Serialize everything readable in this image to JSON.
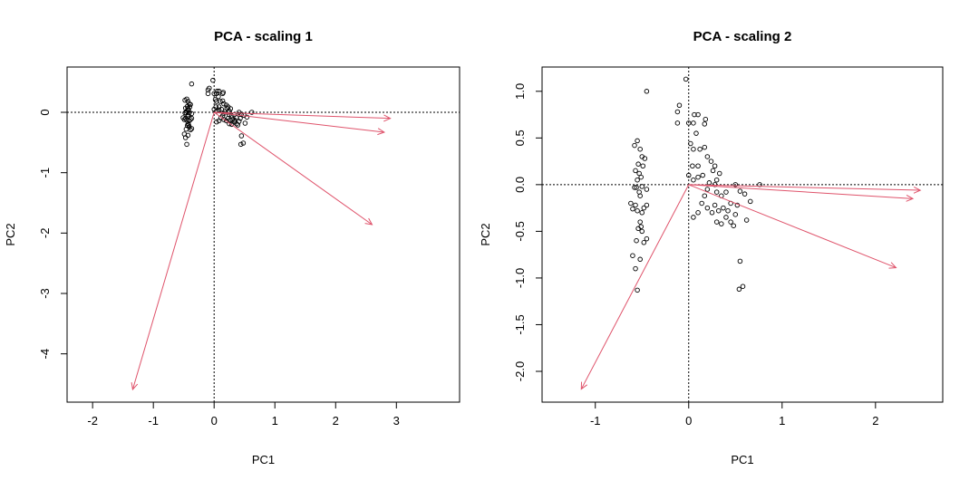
{
  "colors": {
    "arrow": "#df536b",
    "points": "#000000",
    "axes": "#000000"
  },
  "chart_data": [
    {
      "type": "scatter",
      "subtype": "biplot",
      "title": "PCA - scaling 1",
      "xlabel": "PC1",
      "ylabel": "PC2",
      "xlim": [
        -2.42,
        4.04
      ],
      "ylim": [
        -4.8,
        0.75
      ],
      "xticks": [
        -2,
        -1,
        0,
        1,
        2,
        3
      ],
      "yticks": [
        0,
        -1,
        -2,
        -3,
        -4
      ],
      "reference_lines": {
        "x": 0,
        "y": 0,
        "style": "dotted"
      },
      "arrows": [
        [
          2.9,
          -0.1
        ],
        [
          2.8,
          -0.33
        ],
        [
          2.6,
          -1.86
        ],
        [
          -1.34,
          -4.59
        ]
      ],
      "points": [
        [
          -0.37,
          0.47
        ],
        [
          -0.48,
          0.2
        ],
        [
          -0.43,
          0.18
        ],
        [
          -0.45,
          0.22
        ],
        [
          -0.41,
          0.14
        ],
        [
          -0.39,
          0.13
        ],
        [
          -0.44,
          0.1
        ],
        [
          -0.4,
          0.09
        ],
        [
          -0.47,
          0.07
        ],
        [
          -0.43,
          0.06
        ],
        [
          -0.42,
          0.04
        ],
        [
          -0.45,
          0.02
        ],
        [
          -0.41,
          -0.01
        ],
        [
          -0.46,
          -0.01
        ],
        [
          -0.37,
          -0.02
        ],
        [
          -0.43,
          -0.04
        ],
        [
          -0.43,
          -0.06
        ],
        [
          -0.51,
          -0.09
        ],
        [
          -0.47,
          -0.1
        ],
        [
          -0.37,
          -0.1
        ],
        [
          -0.41,
          -0.14
        ],
        [
          -0.45,
          -0.13
        ],
        [
          -0.49,
          -0.12
        ],
        [
          -0.39,
          -0.12
        ],
        [
          -0.43,
          -0.19
        ],
        [
          -0.44,
          -0.22
        ],
        [
          -0.41,
          -0.24
        ],
        [
          -0.46,
          -0.28
        ],
        [
          -0.39,
          -0.29
        ],
        [
          -0.37,
          -0.27
        ],
        [
          -0.49,
          -0.36
        ],
        [
          -0.47,
          -0.42
        ],
        [
          -0.43,
          -0.38
        ],
        [
          -0.45,
          -0.53
        ],
        [
          -0.42,
          -0.21
        ],
        [
          -0.48,
          -0.01
        ],
        [
          -0.02,
          0.53
        ],
        [
          -0.08,
          0.4
        ],
        [
          -0.1,
          0.37
        ],
        [
          -0.1,
          0.31
        ],
        [
          0,
          0.31
        ],
        [
          0.04,
          0.31
        ],
        [
          0.08,
          0.35
        ],
        [
          0.05,
          0.35
        ],
        [
          0.15,
          0.33
        ],
        [
          0.14,
          0.31
        ],
        [
          0.14,
          0.19
        ],
        [
          0.07,
          0.26
        ],
        [
          0.02,
          0.21
        ],
        [
          0.04,
          0.18
        ],
        [
          0.1,
          0.18
        ],
        [
          0.16,
          0.14
        ],
        [
          0.2,
          0.12
        ],
        [
          0.23,
          0.09
        ],
        [
          0.21,
          0.07
        ],
        [
          0.27,
          0.06
        ],
        [
          0.08,
          0.09
        ],
        [
          0.03,
          0.09
        ],
        [
          0.08,
          0.04
        ],
        [
          0.12,
          0.05
        ],
        [
          0.25,
          0.02
        ],
        [
          0.18,
          0.01
        ],
        [
          0.23,
          0
        ],
        [
          0.41,
          0
        ],
        [
          0.62,
          0
        ],
        [
          0,
          0.05
        ],
        [
          0.04,
          0.02
        ],
        [
          0.16,
          -0.02
        ],
        [
          0.25,
          -0.04
        ],
        [
          0.33,
          -0.04
        ],
        [
          0.45,
          -0.03
        ],
        [
          0.29,
          -0.06
        ],
        [
          0.14,
          -0.06
        ],
        [
          0.11,
          -0.09
        ],
        [
          0.16,
          -0.12
        ],
        [
          0.23,
          -0.1
        ],
        [
          0.26,
          -0.13
        ],
        [
          0.3,
          -0.12
        ],
        [
          0.37,
          -0.09
        ],
        [
          0.43,
          -0.1
        ],
        [
          0.54,
          -0.08
        ],
        [
          0.33,
          -0.16
        ],
        [
          0.25,
          -0.19
        ],
        [
          0.29,
          -0.2
        ],
        [
          0.37,
          -0.19
        ],
        [
          0.41,
          -0.15
        ],
        [
          0.04,
          -0.16
        ],
        [
          0.2,
          -0.14
        ],
        [
          0.51,
          -0.18
        ],
        [
          0.39,
          -0.21
        ],
        [
          0.45,
          -0.39
        ],
        [
          0.44,
          -0.53
        ],
        [
          0.48,
          -0.51
        ],
        [
          0.08,
          -0.14
        ],
        [
          0.34,
          -0.13
        ],
        [
          0.49,
          -0.05
        ]
      ]
    },
    {
      "type": "scatter",
      "subtype": "biplot",
      "title": "PCA - scaling 2",
      "xlabel": "PC1",
      "ylabel": "PC2",
      "xlim": [
        -1.57,
        2.72
      ],
      "ylim": [
        -2.33,
        1.26
      ],
      "xticks": [
        -1,
        0,
        1,
        2
      ],
      "yticks": [
        1.0,
        0.5,
        0.0,
        -0.5,
        -1.0,
        -1.5,
        -2.0
      ],
      "ytick_labels": [
        "1.0",
        "0.5",
        "0.0",
        "-0.5",
        "-1.0",
        "-1.5",
        "-2.0"
      ],
      "reference_lines": {
        "x": 0,
        "y": 0,
        "style": "dotted"
      },
      "arrows": [
        [
          2.48,
          -0.06
        ],
        [
          2.4,
          -0.15
        ],
        [
          2.22,
          -0.89
        ],
        [
          -1.15,
          -2.19
        ]
      ],
      "points": [
        [
          -0.45,
          1.0
        ],
        [
          -0.58,
          0.42
        ],
        [
          -0.52,
          0.38
        ],
        [
          -0.55,
          0.47
        ],
        [
          -0.5,
          0.3
        ],
        [
          -0.47,
          0.28
        ],
        [
          -0.54,
          0.22
        ],
        [
          -0.49,
          0.2
        ],
        [
          -0.57,
          0.15
        ],
        [
          -0.53,
          0.12
        ],
        [
          -0.51,
          0.08
        ],
        [
          -0.55,
          0.05
        ],
        [
          -0.5,
          -0.02
        ],
        [
          -0.56,
          -0.03
        ],
        [
          -0.45,
          -0.05
        ],
        [
          -0.53,
          -0.08
        ],
        [
          -0.52,
          -0.12
        ],
        [
          -0.62,
          -0.2
        ],
        [
          -0.57,
          -0.22
        ],
        [
          -0.45,
          -0.22
        ],
        [
          -0.5,
          -0.3
        ],
        [
          -0.55,
          -0.28
        ],
        [
          -0.6,
          -0.26
        ],
        [
          -0.48,
          -0.25
        ],
        [
          -0.52,
          -0.4
        ],
        [
          -0.54,
          -0.47
        ],
        [
          -0.5,
          -0.5
        ],
        [
          -0.56,
          -0.6
        ],
        [
          -0.48,
          -0.62
        ],
        [
          -0.45,
          -0.58
        ],
        [
          -0.6,
          -0.76
        ],
        [
          -0.57,
          -0.9
        ],
        [
          -0.52,
          -0.8
        ],
        [
          -0.55,
          -1.13
        ],
        [
          -0.51,
          -0.45
        ],
        [
          -0.58,
          -0.03
        ],
        [
          -0.03,
          1.13
        ],
        [
          -0.1,
          0.85
        ],
        [
          -0.12,
          0.78
        ],
        [
          -0.12,
          0.66
        ],
        [
          0,
          0.66
        ],
        [
          0.05,
          0.66
        ],
        [
          0.1,
          0.75
        ],
        [
          0.06,
          0.75
        ],
        [
          0.18,
          0.7
        ],
        [
          0.17,
          0.65
        ],
        [
          0.17,
          0.4
        ],
        [
          0.08,
          0.55
        ],
        [
          0.02,
          0.44
        ],
        [
          0.05,
          0.38
        ],
        [
          0.12,
          0.38
        ],
        [
          0.2,
          0.3
        ],
        [
          0.24,
          0.25
        ],
        [
          0.28,
          0.2
        ],
        [
          0.26,
          0.15
        ],
        [
          0.33,
          0.12
        ],
        [
          0.1,
          0.2
        ],
        [
          0.04,
          0.2
        ],
        [
          0.1,
          0.08
        ],
        [
          0.15,
          0.1
        ],
        [
          0.3,
          0.05
        ],
        [
          0.22,
          0.02
        ],
        [
          0.28,
          0
        ],
        [
          0.5,
          0
        ],
        [
          0.76,
          0
        ],
        [
          0,
          0.1
        ],
        [
          0.05,
          0.05
        ],
        [
          0.2,
          -0.05
        ],
        [
          0.3,
          -0.08
        ],
        [
          0.4,
          -0.08
        ],
        [
          0.55,
          -0.07
        ],
        [
          0.35,
          -0.12
        ],
        [
          0.17,
          -0.12
        ],
        [
          0.14,
          -0.2
        ],
        [
          0.2,
          -0.25
        ],
        [
          0.28,
          -0.22
        ],
        [
          0.32,
          -0.28
        ],
        [
          0.37,
          -0.25
        ],
        [
          0.45,
          -0.2
        ],
        [
          0.52,
          -0.22
        ],
        [
          0.66,
          -0.18
        ],
        [
          0.4,
          -0.35
        ],
        [
          0.3,
          -0.4
        ],
        [
          0.35,
          -0.42
        ],
        [
          0.45,
          -0.4
        ],
        [
          0.5,
          -0.32
        ],
        [
          0.05,
          -0.35
        ],
        [
          0.25,
          -0.3
        ],
        [
          0.62,
          -0.38
        ],
        [
          0.48,
          -0.44
        ],
        [
          0.55,
          -0.82
        ],
        [
          0.54,
          -1.12
        ],
        [
          0.58,
          -1.09
        ],
        [
          0.1,
          -0.3
        ],
        [
          0.42,
          -0.28
        ],
        [
          0.6,
          -0.1
        ]
      ]
    }
  ]
}
